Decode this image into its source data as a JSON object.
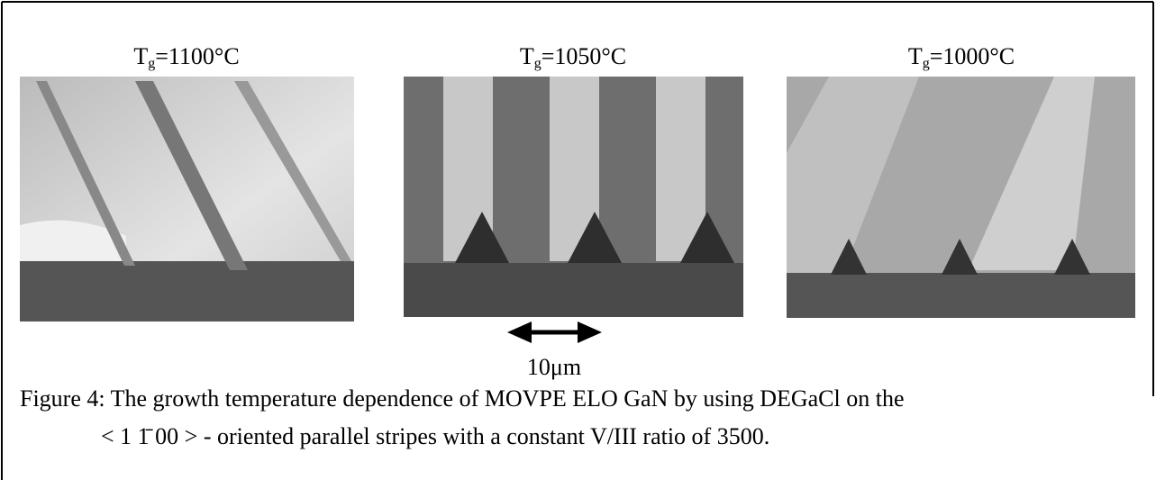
{
  "panels": [
    {
      "label": {
        "main": "T",
        "sub": "g",
        "rest": "=1100°C"
      }
    },
    {
      "label": {
        "main": "T",
        "sub": "g",
        "rest": "=1050°C"
      }
    },
    {
      "label": {
        "main": "T",
        "sub": "g",
        "rest": "=1000°C"
      }
    }
  ],
  "scale_bar": "10μm",
  "caption": [
    "Figure 4: The growth temperature dependence of MOVPE ELO GaN by using DEGaCl on the",
    "< 1 1̄ 00 > - oriented parallel stripes with a constant V/III ratio of 3500."
  ]
}
